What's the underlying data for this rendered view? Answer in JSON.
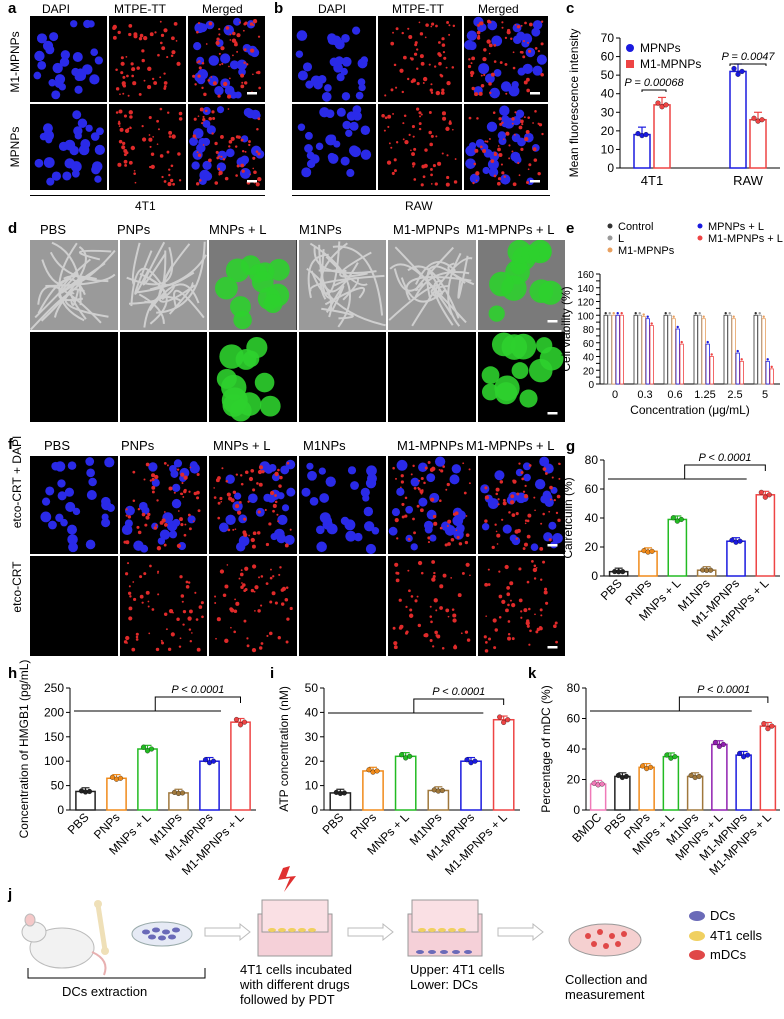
{
  "panel_labels": {
    "a": "a",
    "b": "b",
    "c": "c",
    "d": "d",
    "e": "e",
    "f": "f",
    "g": "g",
    "h": "h",
    "i": "i",
    "j": "j",
    "k": "k"
  },
  "panel_a": {
    "cols": [
      "DAPI",
      "MTPE-TT",
      "Merged"
    ],
    "rows": [
      "M1-MPNPs",
      "MPNPs"
    ],
    "bottom": "4T1"
  },
  "panel_b": {
    "cols": [
      "DAPI",
      "MTPE-TT",
      "Merged"
    ],
    "bottom": "RAW"
  },
  "panel_d": {
    "cols": [
      "PBS",
      "PNPs",
      "MNPs + L",
      "M1NPs",
      "M1-MPNPs",
      "M1-MPNPs + L"
    ]
  },
  "panel_f": {
    "cols": [
      "PBS",
      "PNPs",
      "MNPs + L",
      "M1NPs",
      "M1-MPNPs",
      "M1-MPNPs + L"
    ],
    "rows": [
      "etco-CRT + DAPI",
      "etco-CRT"
    ]
  },
  "chart_data": [
    {
      "id": "c",
      "type": "bar",
      "ylabel": "Mean fluorescence intensity",
      "categories": [
        "4T1",
        "RAW"
      ],
      "ylim": [
        0,
        70
      ],
      "yticks": [
        0,
        10,
        20,
        30,
        40,
        50,
        60,
        70
      ],
      "series": [
        {
          "name": "MPNPs",
          "color": "#1a1adf",
          "values": [
            18,
            52
          ]
        },
        {
          "name": "M1-MPNPs",
          "color": "#ee4444",
          "values": [
            34,
            26
          ]
        }
      ],
      "annotations": [
        "P = 0.00068",
        "P = 0.0047"
      ],
      "legend": "top-left"
    },
    {
      "id": "e",
      "type": "bar",
      "ylabel": "Cell viability (%)",
      "xlabel": "Concentration (μg/mL)",
      "categories": [
        "0",
        "0.3",
        "0.6",
        "1.25",
        "2.5",
        "5"
      ],
      "ylim": [
        0,
        160
      ],
      "yticks": [
        0,
        10,
        20,
        30,
        40,
        50,
        60,
        70,
        80,
        90,
        100,
        110,
        120,
        130,
        140,
        150,
        160
      ],
      "series": [
        {
          "name": "Control",
          "color": "#333333",
          "values": [
            100,
            100,
            100,
            100,
            100,
            100
          ]
        },
        {
          "name": "L",
          "color": "#999999",
          "values": [
            100,
            100,
            100,
            100,
            100,
            100
          ]
        },
        {
          "name": "M1-MPNPs",
          "color": "#e8a060",
          "values": [
            100,
            98,
            95,
            95,
            95,
            95
          ]
        },
        {
          "name": "MPNPs + L",
          "color": "#1a1adf",
          "values": [
            100,
            95,
            80,
            58,
            45,
            33
          ]
        },
        {
          "name": "M1-MPNPs + L",
          "color": "#ee4444",
          "values": [
            100,
            85,
            58,
            40,
            33,
            22
          ]
        }
      ],
      "legend": "top"
    },
    {
      "id": "g",
      "type": "bar",
      "ylabel": "Calreticulin (%)",
      "categories": [
        "PBS",
        "PNPs",
        "MNPs + L",
        "M1NPs",
        "M1-MPNPs",
        "M1-MPNPs + L"
      ],
      "ylim": [
        0,
        80
      ],
      "yticks": [
        0,
        20,
        40,
        60,
        80
      ],
      "values": [
        3,
        17,
        39,
        4,
        24,
        56
      ],
      "colors": [
        "#222222",
        "#f08a1a",
        "#22bb22",
        "#a0783c",
        "#1a1adf",
        "#ee4444"
      ],
      "annotations": [
        "P < 0.0001"
      ]
    },
    {
      "id": "h",
      "type": "bar",
      "ylabel": "Concentration of HMGB1 (pg/mL)",
      "categories": [
        "PBS",
        "PNPs",
        "MNPs + L",
        "M1NPs",
        "M1-MPNPs",
        "M1-MPNPs + L"
      ],
      "ylim": [
        0,
        250
      ],
      "yticks": [
        0,
        50,
        100,
        150,
        200,
        250
      ],
      "values": [
        38,
        65,
        125,
        35,
        100,
        180
      ],
      "colors": [
        "#222222",
        "#f08a1a",
        "#22bb22",
        "#a0783c",
        "#1a1adf",
        "#ee4444"
      ],
      "annotations": [
        "P < 0.0001"
      ]
    },
    {
      "id": "i",
      "type": "bar",
      "ylabel": "ATP concentration (nM)",
      "categories": [
        "PBS",
        "PNPs",
        "MNPs + L",
        "M1NPs",
        "M1-MPNPs",
        "M1-MPNPs + L"
      ],
      "ylim": [
        0,
        50
      ],
      "yticks": [
        0,
        10,
        20,
        30,
        40,
        50
      ],
      "values": [
        7,
        16,
        22,
        8,
        20,
        37
      ],
      "colors": [
        "#222222",
        "#f08a1a",
        "#22bb22",
        "#a0783c",
        "#1a1adf",
        "#ee4444"
      ],
      "annotations": [
        "P < 0.0001"
      ]
    },
    {
      "id": "k",
      "type": "bar",
      "ylabel": "Percentage of mDC (%)",
      "categories": [
        "BMDC",
        "PBS",
        "PNPs",
        "MNPs + L",
        "M1NPs",
        "MPNPs + L",
        "M1-MPNPs",
        "M1-MPNPs + L"
      ],
      "ylim": [
        0,
        80
      ],
      "yticks": [
        0,
        20,
        40,
        60,
        80
      ],
      "values": [
        17,
        22,
        28,
        35,
        22,
        43,
        36,
        55
      ],
      "colors": [
        "#f07ab8",
        "#222222",
        "#f08a1a",
        "#22bb22",
        "#a0783c",
        "#9020b0",
        "#1a1adf",
        "#ee4444"
      ],
      "annotations": [
        "P < 0.0001"
      ]
    }
  ],
  "panel_j": {
    "steps": [
      "DCs extraction",
      "4T1 cells incubated\nwith different drugs\nfollowed by PDT",
      "Upper: 4T1 cells\nLower: DCs",
      "Collection and\nmeasurement"
    ],
    "legend": [
      {
        "label": "DCs",
        "color": "#6a6ab8"
      },
      {
        "label": "4T1 cells",
        "color": "#f0d060"
      },
      {
        "label": "mDCs",
        "color": "#e04848"
      }
    ]
  }
}
